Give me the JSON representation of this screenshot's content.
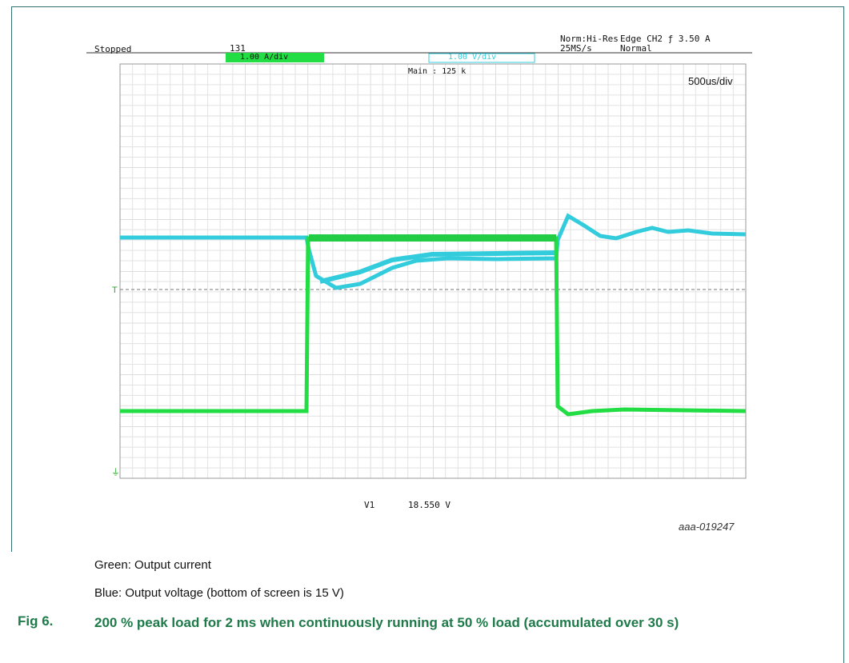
{
  "scope": {
    "status": "Stopped",
    "count": "131",
    "mode": "Norm:Hi-Res",
    "rate": "25MS/s",
    "trigger": "Edge CH2 ƒ 3.50 A",
    "trigger_mode": "Normal",
    "ch1_scale": "1.00 A/div",
    "ch2_scale": "1.00 V/div",
    "main": "Main : 125 k",
    "timebase": "500us/div",
    "cursor_label": "V1",
    "cursor_value": "18.550 V"
  },
  "figure_id": "aaa-019247",
  "notes": [
    "Green: Output current",
    "Blue: Output voltage (bottom of screen is 15 V)"
  ],
  "caption": {
    "number": "Fig 6.",
    "title": "200 % peak load for 2 ms when continuously running at 50 % load (accumulated over 30 s)"
  }
}
